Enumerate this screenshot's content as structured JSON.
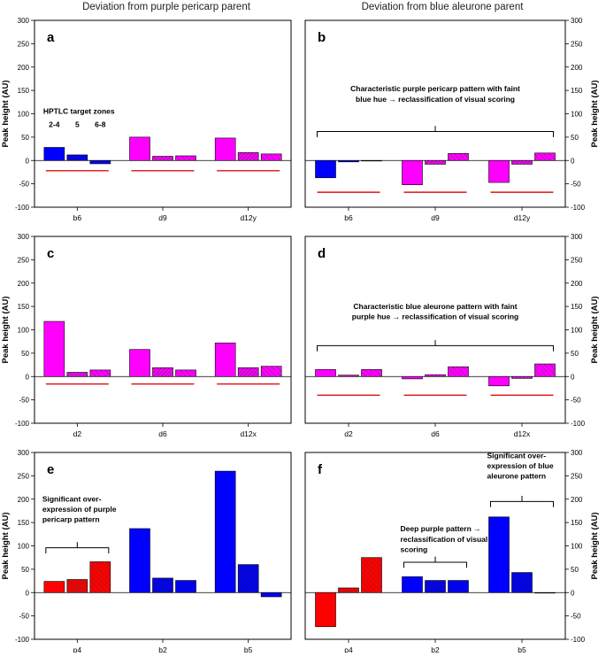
{
  "column_titles": {
    "left": "Deviation from purple pericarp parent",
    "right": "Deviation from blue aleurone parent"
  },
  "axis": {
    "ylabel": "Peak height (AU)",
    "ylim": [
      -100,
      300
    ],
    "yticks": [
      -100,
      -50,
      0,
      50,
      100,
      150,
      200,
      250,
      300
    ],
    "ytick_labels": [
      "-100",
      "-50",
      "0",
      "50",
      "100",
      "150",
      "200",
      "250",
      "300"
    ]
  },
  "colors": {
    "magenta": "#ff00ff",
    "blue": "#0000ff",
    "red": "#ff0000",
    "baseline_red": "#e01010",
    "hatch_line": "#333333"
  },
  "chart_data": [
    {
      "type": "bar",
      "panel": "a",
      "axis_side": "left",
      "categories": [
        "b6",
        "d9",
        "d12y"
      ],
      "xlabel": "",
      "ylabel": "Peak height (AU)",
      "ylim": [
        -100,
        300
      ],
      "series": [
        {
          "name": "zone 2-4",
          "style": "solid",
          "values": [
            28,
            50,
            48
          ]
        },
        {
          "name": "zone 5",
          "style": "dense-hatch",
          "values": [
            12,
            9,
            17
          ]
        },
        {
          "name": "zone 6-8",
          "style": "light-hatch",
          "values": [
            -7,
            10,
            14
          ]
        }
      ],
      "group_colors": [
        "blue",
        "magenta",
        "magenta"
      ],
      "ref_line": -22,
      "text_annotations": [
        {
          "text": "HPTLC target zones",
          "value_y": 100,
          "anchor": "group-0"
        },
        {
          "text": "2-4",
          "value_y": 72,
          "anchor": "bar-0-0"
        },
        {
          "text": "5",
          "value_y": 72,
          "anchor": "bar-0-1"
        },
        {
          "text": "6-8",
          "value_y": 72,
          "anchor": "bar-0-2"
        }
      ]
    },
    {
      "type": "bar",
      "panel": "b",
      "axis_side": "right",
      "categories": [
        "b6",
        "d9",
        "d12y"
      ],
      "xlabel": "",
      "ylabel": "Peak height (AU)",
      "ylim": [
        -100,
        300
      ],
      "series": [
        {
          "name": "zone 2-4",
          "style": "solid",
          "values": [
            -37,
            -52,
            -47
          ]
        },
        {
          "name": "zone 5",
          "style": "dense-hatch",
          "values": [
            -3,
            -8,
            -8
          ]
        },
        {
          "name": "zone 6-8",
          "style": "light-hatch",
          "values": [
            -1,
            15,
            16
          ]
        }
      ],
      "group_colors": [
        "blue",
        "magenta",
        "magenta"
      ],
      "ref_line": -68,
      "bracket": {
        "from_group": 0,
        "to_group": 2,
        "value_y": 62,
        "tip": 12
      },
      "text_annotations": [
        {
          "text": "Characteristic purple pericarp pattern with faint",
          "value_y": 148,
          "anchor": "center"
        },
        {
          "text": "blue hue → reclassification of visual scoring",
          "value_y": 126,
          "anchor": "center"
        }
      ]
    },
    {
      "type": "bar",
      "panel": "c",
      "axis_side": "left",
      "categories": [
        "d2",
        "d6",
        "d12x"
      ],
      "xlabel": "",
      "ylabel": "Peak height (AU)",
      "ylim": [
        -100,
        300
      ],
      "series": [
        {
          "name": "zone 2-4",
          "style": "solid",
          "values": [
            118,
            58,
            72
          ]
        },
        {
          "name": "zone 5",
          "style": "dense-hatch",
          "values": [
            9,
            19,
            19
          ]
        },
        {
          "name": "zone 6-8",
          "style": "light-hatch",
          "values": [
            14,
            14,
            22
          ]
        }
      ],
      "group_colors": [
        "magenta",
        "magenta",
        "magenta"
      ],
      "ref_line": -16
    },
    {
      "type": "bar",
      "panel": "d",
      "axis_side": "right",
      "categories": [
        "d2",
        "d6",
        "d12x"
      ],
      "xlabel": "",
      "ylabel": "Peak height (AU)",
      "ylim": [
        -100,
        300
      ],
      "series": [
        {
          "name": "zone 2-4",
          "style": "solid",
          "values": [
            15,
            -5,
            -20
          ]
        },
        {
          "name": "zone 5",
          "style": "dense-hatch",
          "values": [
            3,
            4,
            -4
          ]
        },
        {
          "name": "zone 6-8",
          "style": "light-hatch",
          "values": [
            15,
            21,
            27
          ]
        }
      ],
      "group_colors": [
        "magenta",
        "magenta",
        "magenta"
      ],
      "ref_line": -40,
      "bracket": {
        "from_group": 0,
        "to_group": 2,
        "value_y": 66,
        "tip": 12
      },
      "text_annotations": [
        {
          "text": "Characteristic blue aleurone pattern with faint",
          "value_y": 145,
          "anchor": "center"
        },
        {
          "text": "purple hue → reclassification of visual scoring",
          "value_y": 123,
          "anchor": "center"
        }
      ]
    },
    {
      "type": "bar",
      "panel": "e",
      "axis_side": "left",
      "categories": [
        "p4",
        "b2",
        "b5"
      ],
      "xlabel": "",
      "ylabel": "Peak height (AU)",
      "ylim": [
        -100,
        300
      ],
      "series": [
        {
          "name": "zone 2-4",
          "style": "solid",
          "values": [
            24,
            137,
            260
          ]
        },
        {
          "name": "zone 5",
          "style": "dense-hatch",
          "values": [
            28,
            31,
            60
          ]
        },
        {
          "name": "zone 6-8",
          "style": "light-hatch",
          "values": [
            66,
            26,
            -9
          ]
        }
      ],
      "group_colors": [
        "red",
        "blue",
        "blue"
      ],
      "bracket": {
        "from_group": 0,
        "to_group": 0,
        "value_y": 96,
        "tip": 12
      },
      "text_annotations": [
        {
          "text": "Significant over-",
          "value_y": 195,
          "anchor": "group-0-left"
        },
        {
          "text": "expression of purple",
          "value_y": 173,
          "anchor": "group-0-left"
        },
        {
          "text": "pericarp pattern",
          "value_y": 151,
          "anchor": "group-0-left"
        }
      ]
    },
    {
      "type": "bar",
      "panel": "f",
      "axis_side": "right",
      "categories": [
        "p4",
        "b2",
        "b5"
      ],
      "xlabel": "",
      "ylabel": "Peak height (AU)",
      "ylim": [
        -100,
        300
      ],
      "series": [
        {
          "name": "zone 2-4",
          "style": "solid",
          "values": [
            -73,
            34,
            162
          ]
        },
        {
          "name": "zone 5",
          "style": "dense-hatch",
          "values": [
            10,
            26,
            43
          ]
        },
        {
          "name": "zone 6-8",
          "style": "light-hatch",
          "values": [
            75,
            26,
            0
          ]
        }
      ],
      "group_colors": [
        "red",
        "blue",
        "blue"
      ],
      "brackets": [
        {
          "from_group": 1,
          "to_group": 1,
          "value_y": 65,
          "tip": 12
        },
        {
          "from_group": 2,
          "to_group": 2,
          "value_y": 195,
          "tip": 12
        }
      ],
      "text_annotations": [
        {
          "text": "Deep purple pattern →",
          "value_y": 131,
          "anchor": "group-1-left"
        },
        {
          "text": "reclassification of visual",
          "value_y": 109,
          "anchor": "group-1-left"
        },
        {
          "text": "scoring",
          "value_y": 87,
          "anchor": "group-1-left"
        },
        {
          "text": "Significant over-",
          "value_y": 288,
          "anchor": "group-2-left"
        },
        {
          "text": "expression of blue",
          "value_y": 266,
          "anchor": "group-2-left"
        },
        {
          "text": "aleurone pattern",
          "value_y": 244,
          "anchor": "group-2-left"
        }
      ]
    }
  ]
}
